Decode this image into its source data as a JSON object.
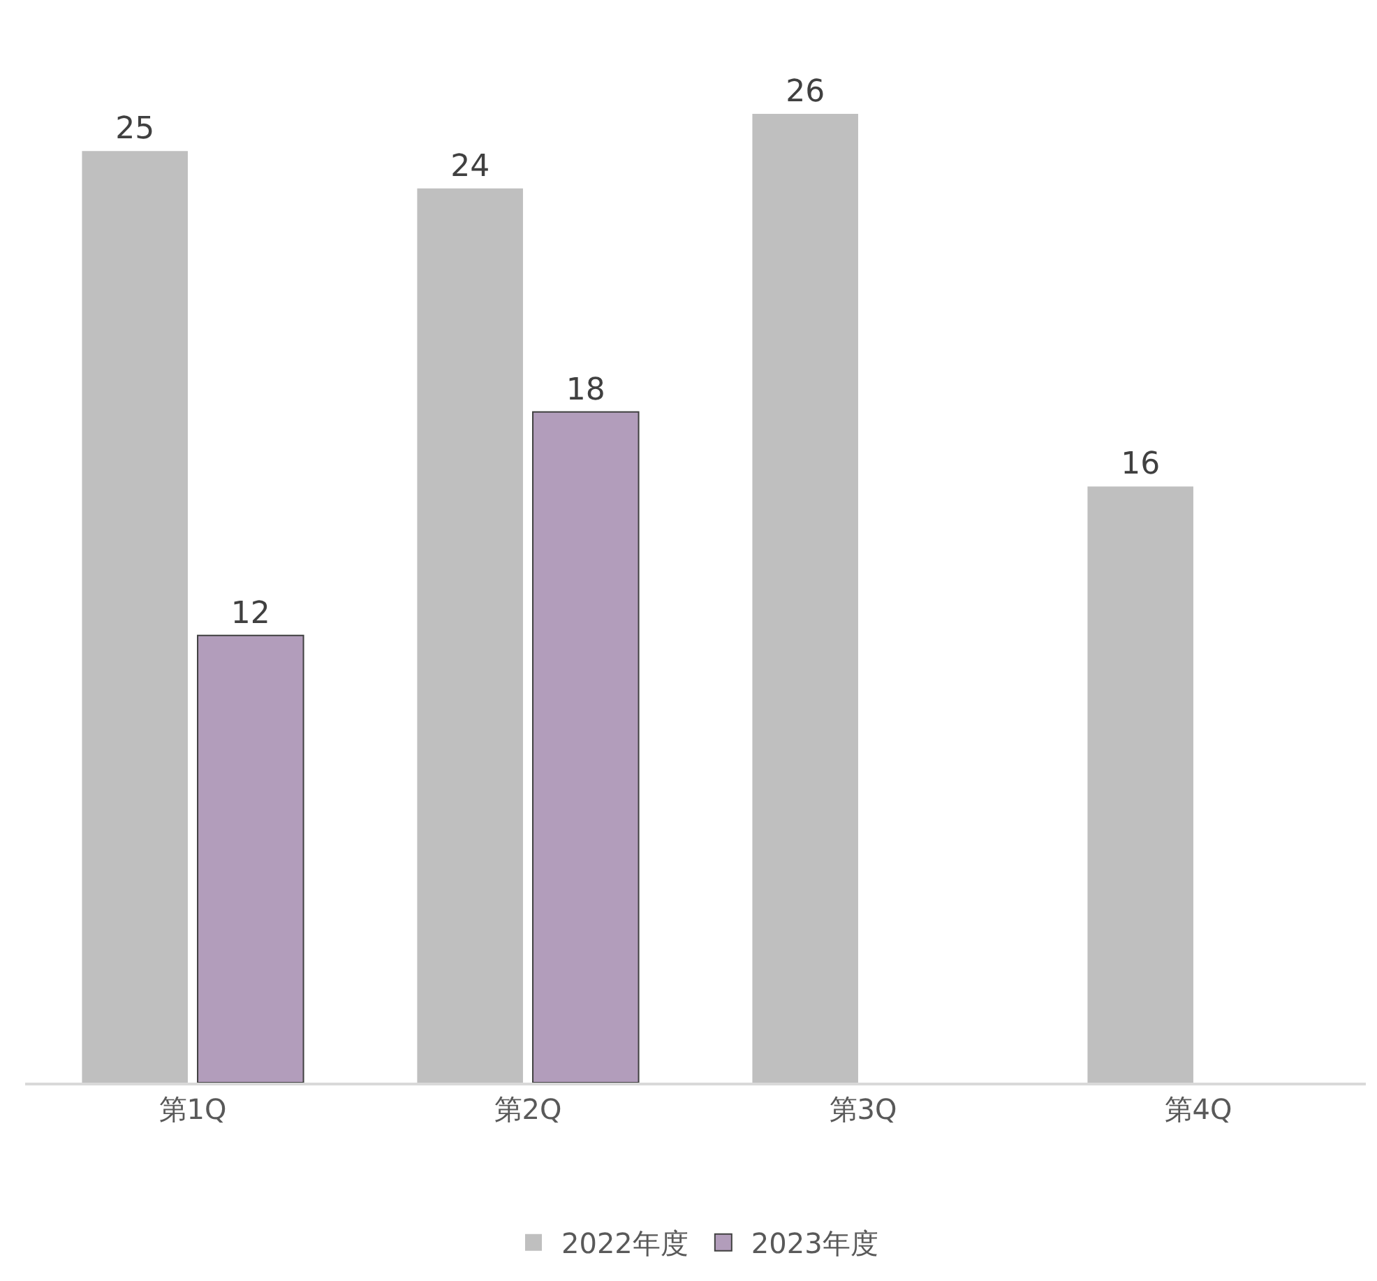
{
  "chart_data": {
    "type": "bar",
    "categories": [
      "第1Q",
      "第2Q",
      "第3Q",
      "第4Q"
    ],
    "series": [
      {
        "name": "2022年度",
        "color": "#bfbfbf",
        "values": [
          25,
          24,
          26,
          16
        ]
      },
      {
        "name": "2023年度",
        "color": "#b29dbb",
        "values": [
          12,
          18,
          null,
          null
        ]
      }
    ],
    "data_labels": true,
    "legend": "bottom",
    "grid": false
  }
}
